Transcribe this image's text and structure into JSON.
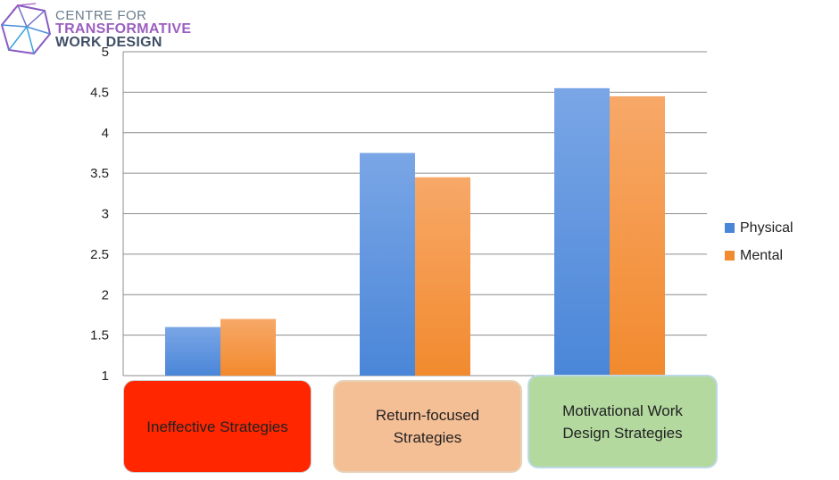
{
  "logo": {
    "line1": "CENTRE FOR",
    "line2": "TRANSFORMATIVE",
    "line3": "WORK DESIGN"
  },
  "chart_data": {
    "type": "bar",
    "categories": [
      "Ineffective Strategies",
      "Return-focused Strategies",
      "Motivational Work Design Strategies"
    ],
    "series": [
      {
        "name": "Physical",
        "values": [
          1.6,
          3.75,
          4.55
        ],
        "color": "#4a86d8"
      },
      {
        "name": "Mental",
        "values": [
          1.7,
          3.45,
          4.45
        ],
        "color": "#f28a2e"
      }
    ],
    "ylim": [
      1,
      5
    ],
    "yticks": [
      "1",
      "1.5",
      "2",
      "2.5",
      "3",
      "3.5",
      "4",
      "4.5",
      "5"
    ],
    "grid": true,
    "legend": "right",
    "category_box_colors": [
      "#ff2600",
      "#f5bf96",
      "#b3d99f"
    ]
  }
}
